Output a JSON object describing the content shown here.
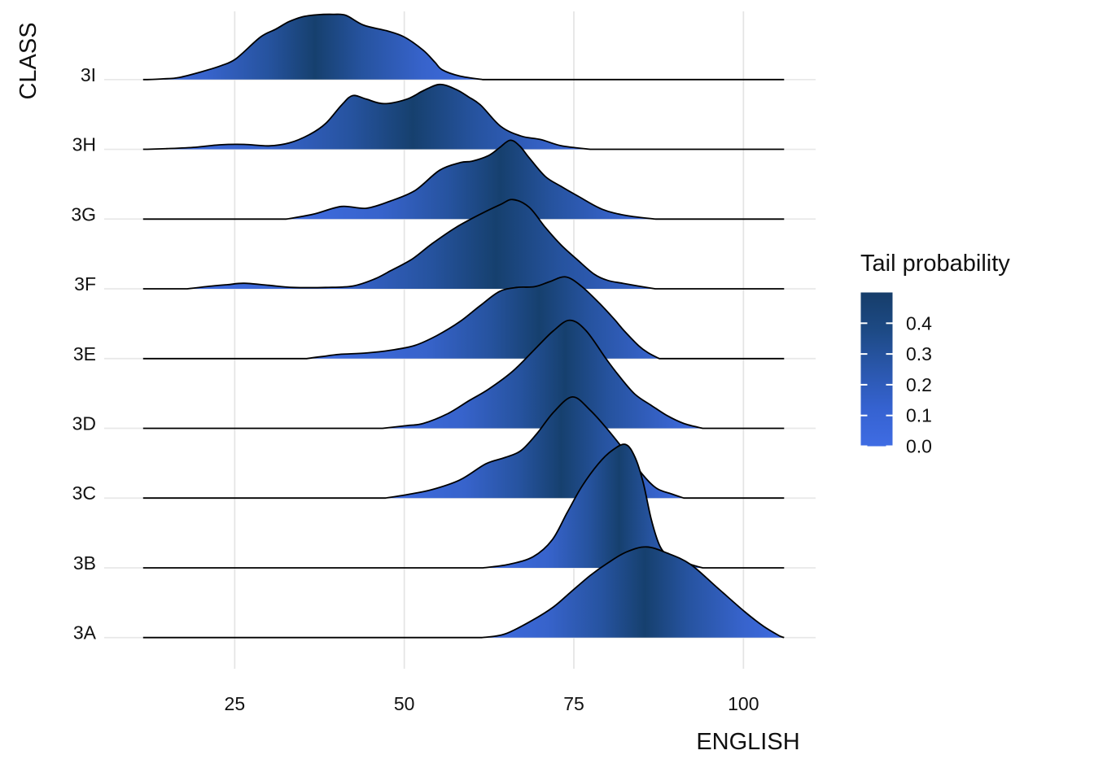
{
  "axes": {
    "x": {
      "label": "ENGLISH",
      "tick_labels": [
        "25",
        "50",
        "75",
        "100"
      ],
      "tick_values": [
        25,
        50,
        75,
        100
      ]
    },
    "y": {
      "label": "CLASS",
      "categories_top_to_bottom": [
        "3I",
        "3H",
        "3G",
        "3F",
        "3E",
        "3D",
        "3C",
        "3B",
        "3A"
      ]
    }
  },
  "legend": {
    "title": "Tail probability",
    "tick_labels": [
      "0.4",
      "0.3",
      "0.2",
      "0.1",
      "0.0"
    ],
    "tick_values": [
      0.4,
      0.3,
      0.2,
      0.1,
      0.0
    ],
    "bar_value_range": [
      0.0,
      0.5
    ],
    "color_low": "#3F6CE3",
    "color_mid": "#2A57AC",
    "color_high": "#163D6A"
  },
  "chart_data": {
    "type": "area",
    "variant": "ridgeline-density",
    "title": "",
    "xlabel": "ENGLISH",
    "ylabel": "CLASS",
    "fill_label": "Tail probability",
    "x_ticks": [
      25,
      50,
      75,
      100
    ],
    "baseline_x_range": [
      11.5,
      106
    ],
    "height_unit": "relative to class row spacing",
    "colors": {
      "tail_low": "#3F6CE3",
      "median_high": "#16406E",
      "outline": "#000000"
    },
    "series": [
      {
        "name": "3I",
        "dark_center_frac": 0.5,
        "points": [
          [
            12.1,
            0
          ],
          [
            14.5,
            0.01
          ],
          [
            16.8,
            0.03
          ],
          [
            20.4,
            0.12
          ],
          [
            23,
            0.2
          ],
          [
            25.2,
            0.3
          ],
          [
            28.8,
            0.61
          ],
          [
            31,
            0.72
          ],
          [
            33,
            0.83
          ],
          [
            35,
            0.9
          ],
          [
            37.2,
            0.93
          ],
          [
            39.5,
            0.935
          ],
          [
            41.4,
            0.92
          ],
          [
            44,
            0.78
          ],
          [
            47.4,
            0.7
          ],
          [
            50,
            0.61
          ],
          [
            52.8,
            0.42
          ],
          [
            54.5,
            0.25
          ],
          [
            55.6,
            0.14
          ],
          [
            58.2,
            0.05
          ],
          [
            61.6,
            0
          ]
        ]
      },
      {
        "name": "3H",
        "dark_center_frac": 0.6,
        "points": [
          [
            12.1,
            0
          ],
          [
            15,
            0.01
          ],
          [
            19.2,
            0.03
          ],
          [
            22.8,
            0.065
          ],
          [
            26.4,
            0.07
          ],
          [
            30,
            0.05
          ],
          [
            33,
            0.09
          ],
          [
            36,
            0.21
          ],
          [
            38.4,
            0.37
          ],
          [
            40.8,
            0.64
          ],
          [
            42.4,
            0.77
          ],
          [
            44.4,
            0.72
          ],
          [
            47,
            0.655
          ],
          [
            50.4,
            0.72
          ],
          [
            52.8,
            0.84
          ],
          [
            55.2,
            0.93
          ],
          [
            57.6,
            0.86
          ],
          [
            59.5,
            0.75
          ],
          [
            61.3,
            0.63
          ],
          [
            64.2,
            0.33
          ],
          [
            67.2,
            0.19
          ],
          [
            70.1,
            0.14
          ],
          [
            73.2,
            0.05
          ],
          [
            77.4,
            0
          ]
        ]
      },
      {
        "name": "3G",
        "dark_center_frac": 0.58,
        "points": [
          [
            32.6,
            0
          ],
          [
            36.6,
            0.07
          ],
          [
            40.7,
            0.18
          ],
          [
            44.4,
            0.155
          ],
          [
            48,
            0.26
          ],
          [
            51.6,
            0.41
          ],
          [
            55.2,
            0.7
          ],
          [
            58.3,
            0.81
          ],
          [
            60,
            0.83
          ],
          [
            62.4,
            0.91
          ],
          [
            64,
            1.02
          ],
          [
            65.6,
            1.13
          ],
          [
            67,
            1.05
          ],
          [
            68.4,
            0.88
          ],
          [
            70.8,
            0.61
          ],
          [
            73.1,
            0.47
          ],
          [
            75.6,
            0.33
          ],
          [
            79.2,
            0.14
          ],
          [
            82.8,
            0.05
          ],
          [
            87.1,
            0
          ]
        ]
      },
      {
        "name": "3F",
        "dark_center_frac": 0.66,
        "points": [
          [
            18,
            0
          ],
          [
            21.6,
            0.04
          ],
          [
            24,
            0.06
          ],
          [
            26.4,
            0.08
          ],
          [
            30,
            0.05
          ],
          [
            33.6,
            0.02
          ],
          [
            38.4,
            0.02
          ],
          [
            42.4,
            0.04
          ],
          [
            45.6,
            0.14
          ],
          [
            48,
            0.26
          ],
          [
            51.2,
            0.43
          ],
          [
            54,
            0.64
          ],
          [
            57.6,
            0.88
          ],
          [
            61.2,
            1.07
          ],
          [
            64.2,
            1.21
          ],
          [
            66,
            1.28
          ],
          [
            68.4,
            1.17
          ],
          [
            70.8,
            0.88
          ],
          [
            73.1,
            0.63
          ],
          [
            75.6,
            0.41
          ],
          [
            78,
            0.21
          ],
          [
            80,
            0.12
          ],
          [
            82.2,
            0.08
          ],
          [
            84.5,
            0.04
          ],
          [
            87,
            0
          ]
        ]
      },
      {
        "name": "3E",
        "dark_center_frac": 0.66,
        "points": [
          [
            35.6,
            0
          ],
          [
            38,
            0.03
          ],
          [
            40.4,
            0.06
          ],
          [
            44.4,
            0.08
          ],
          [
            48,
            0.12
          ],
          [
            51.6,
            0.19
          ],
          [
            54.8,
            0.33
          ],
          [
            58.2,
            0.53
          ],
          [
            61.2,
            0.76
          ],
          [
            64,
            0.96
          ],
          [
            66.6,
            1.02
          ],
          [
            69.2,
            1.03
          ],
          [
            71.4,
            1.1
          ],
          [
            73.8,
            1.17
          ],
          [
            76.2,
            1.03
          ],
          [
            78.8,
            0.79
          ],
          [
            81,
            0.56
          ],
          [
            82.4,
            0.4
          ],
          [
            84.6,
            0.18
          ],
          [
            86,
            0.08
          ],
          [
            87.6,
            0
          ]
        ]
      },
      {
        "name": "3D",
        "dark_center_frac": 0.57,
        "points": [
          [
            46.8,
            0
          ],
          [
            50.4,
            0.04
          ],
          [
            52.8,
            0.07
          ],
          [
            56.4,
            0.21
          ],
          [
            59.6,
            0.4
          ],
          [
            62.4,
            0.56
          ],
          [
            66,
            0.82
          ],
          [
            69.6,
            1.17
          ],
          [
            72,
            1.4
          ],
          [
            74.4,
            1.55
          ],
          [
            76.8,
            1.4
          ],
          [
            79.8,
            0.99
          ],
          [
            81.6,
            0.76
          ],
          [
            84,
            0.49
          ],
          [
            86.4,
            0.33
          ],
          [
            88.8,
            0.18
          ],
          [
            91.2,
            0.07
          ],
          [
            94,
            0
          ]
        ]
      },
      {
        "name": "3C",
        "dark_center_frac": 0.59,
        "points": [
          [
            47.2,
            0
          ],
          [
            50.4,
            0.05
          ],
          [
            54,
            0.12
          ],
          [
            58.2,
            0.26
          ],
          [
            62,
            0.49
          ],
          [
            64.8,
            0.58
          ],
          [
            67.2,
            0.68
          ],
          [
            69.6,
            0.93
          ],
          [
            72,
            1.23
          ],
          [
            74.8,
            1.45
          ],
          [
            77.4,
            1.26
          ],
          [
            80,
            0.98
          ],
          [
            82.8,
            0.64
          ],
          [
            85.2,
            0.33
          ],
          [
            87.2,
            0.14
          ],
          [
            89.4,
            0.06
          ],
          [
            91.2,
            0
          ]
        ]
      },
      {
        "name": "3B",
        "dark_center_frac": 0.62,
        "points": [
          [
            61.6,
            0
          ],
          [
            65.4,
            0.05
          ],
          [
            69,
            0.16
          ],
          [
            71.8,
            0.4
          ],
          [
            74,
            0.79
          ],
          [
            76.2,
            1.17
          ],
          [
            78.6,
            1.49
          ],
          [
            80.6,
            1.68
          ],
          [
            82.6,
            1.77
          ],
          [
            84,
            1.59
          ],
          [
            85.2,
            1.23
          ],
          [
            86.4,
            0.7
          ],
          [
            87.6,
            0.33
          ],
          [
            88.8,
            0.18
          ],
          [
            90.2,
            0.13
          ],
          [
            92.2,
            0.05
          ],
          [
            94,
            0
          ]
        ]
      },
      {
        "name": "3A",
        "dark_center_frac": 0.54,
        "points": [
          [
            61.4,
            0
          ],
          [
            64.8,
            0.05
          ],
          [
            68.9,
            0.25
          ],
          [
            72,
            0.44
          ],
          [
            74.4,
            0.64
          ],
          [
            77.4,
            0.89
          ],
          [
            80,
            1.07
          ],
          [
            82.8,
            1.23
          ],
          [
            85.7,
            1.3
          ],
          [
            88.8,
            1.21
          ],
          [
            92.2,
            1.05
          ],
          [
            96.1,
            0.72
          ],
          [
            100.2,
            0.37
          ],
          [
            103,
            0.16
          ],
          [
            105.4,
            0.02
          ],
          [
            106,
            0
          ]
        ]
      }
    ]
  }
}
